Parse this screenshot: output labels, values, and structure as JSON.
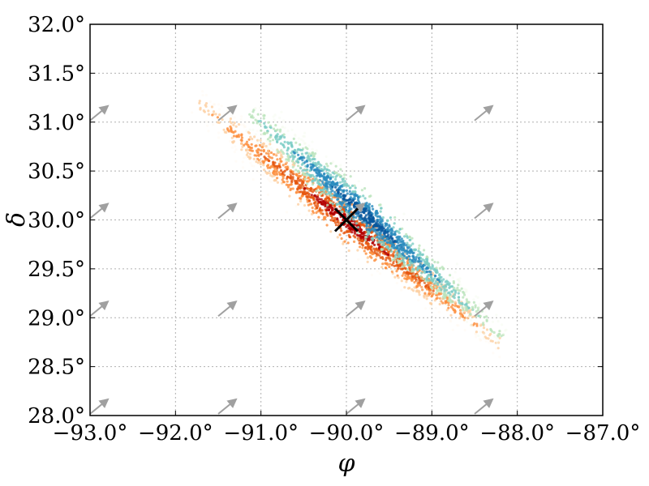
{
  "chart_data": {
    "type": "scatter",
    "title": "",
    "xlabel": "φ",
    "ylabel": "δ",
    "xlim": [
      -93.0,
      -87.0
    ],
    "ylim": [
      28.0,
      32.0
    ],
    "xticks": [
      -93.0,
      -92.0,
      -91.0,
      -90.0,
      -89.0,
      -88.0,
      -87.0
    ],
    "xtick_labels": [
      "−93.0°",
      "−92.0°",
      "−91.0°",
      "−90.0°",
      "−89.0°",
      "−88.0°",
      "−87.0°"
    ],
    "yticks": [
      28.0,
      28.5,
      29.0,
      29.5,
      30.0,
      30.5,
      31.0,
      31.5,
      32.0
    ],
    "ytick_labels": [
      "28.0°",
      "28.5°",
      "29.0°",
      "29.5°",
      "30.0°",
      "30.5°",
      "31.0°",
      "31.5°",
      "32.0°"
    ],
    "grid": true,
    "legend": "none",
    "marker": {
      "x": -90.0,
      "y": 30.0,
      "symbol": "x"
    },
    "series": [
      {
        "colormap": "Reds",
        "colors": [
          "#fff5eb",
          "#fdd0a2",
          "#fd8d3c",
          "#e6550d",
          "#b30000"
        ],
        "center_line": [
          [
            -91.6,
            31.1
          ],
          [
            -88.3,
            28.8
          ]
        ],
        "peak": [
          -90.0,
          29.95
        ]
      },
      {
        "colormap": "GnBu",
        "colors": [
          "#f0f9e8",
          "#bae4bc",
          "#7bccc4",
          "#2b8cbe",
          "#08589e"
        ],
        "center_line": [
          [
            -91.0,
            31.0
          ],
          [
            -88.3,
            28.9
          ]
        ],
        "peak": [
          -89.7,
          30.15
        ]
      }
    ],
    "arrows": {
      "x": [
        -93.0,
        -91.5,
        -90.0,
        -88.5
      ],
      "y": [
        28.0,
        29.0,
        30.0,
        31.0
      ],
      "color": "#a0a0a0"
    }
  }
}
